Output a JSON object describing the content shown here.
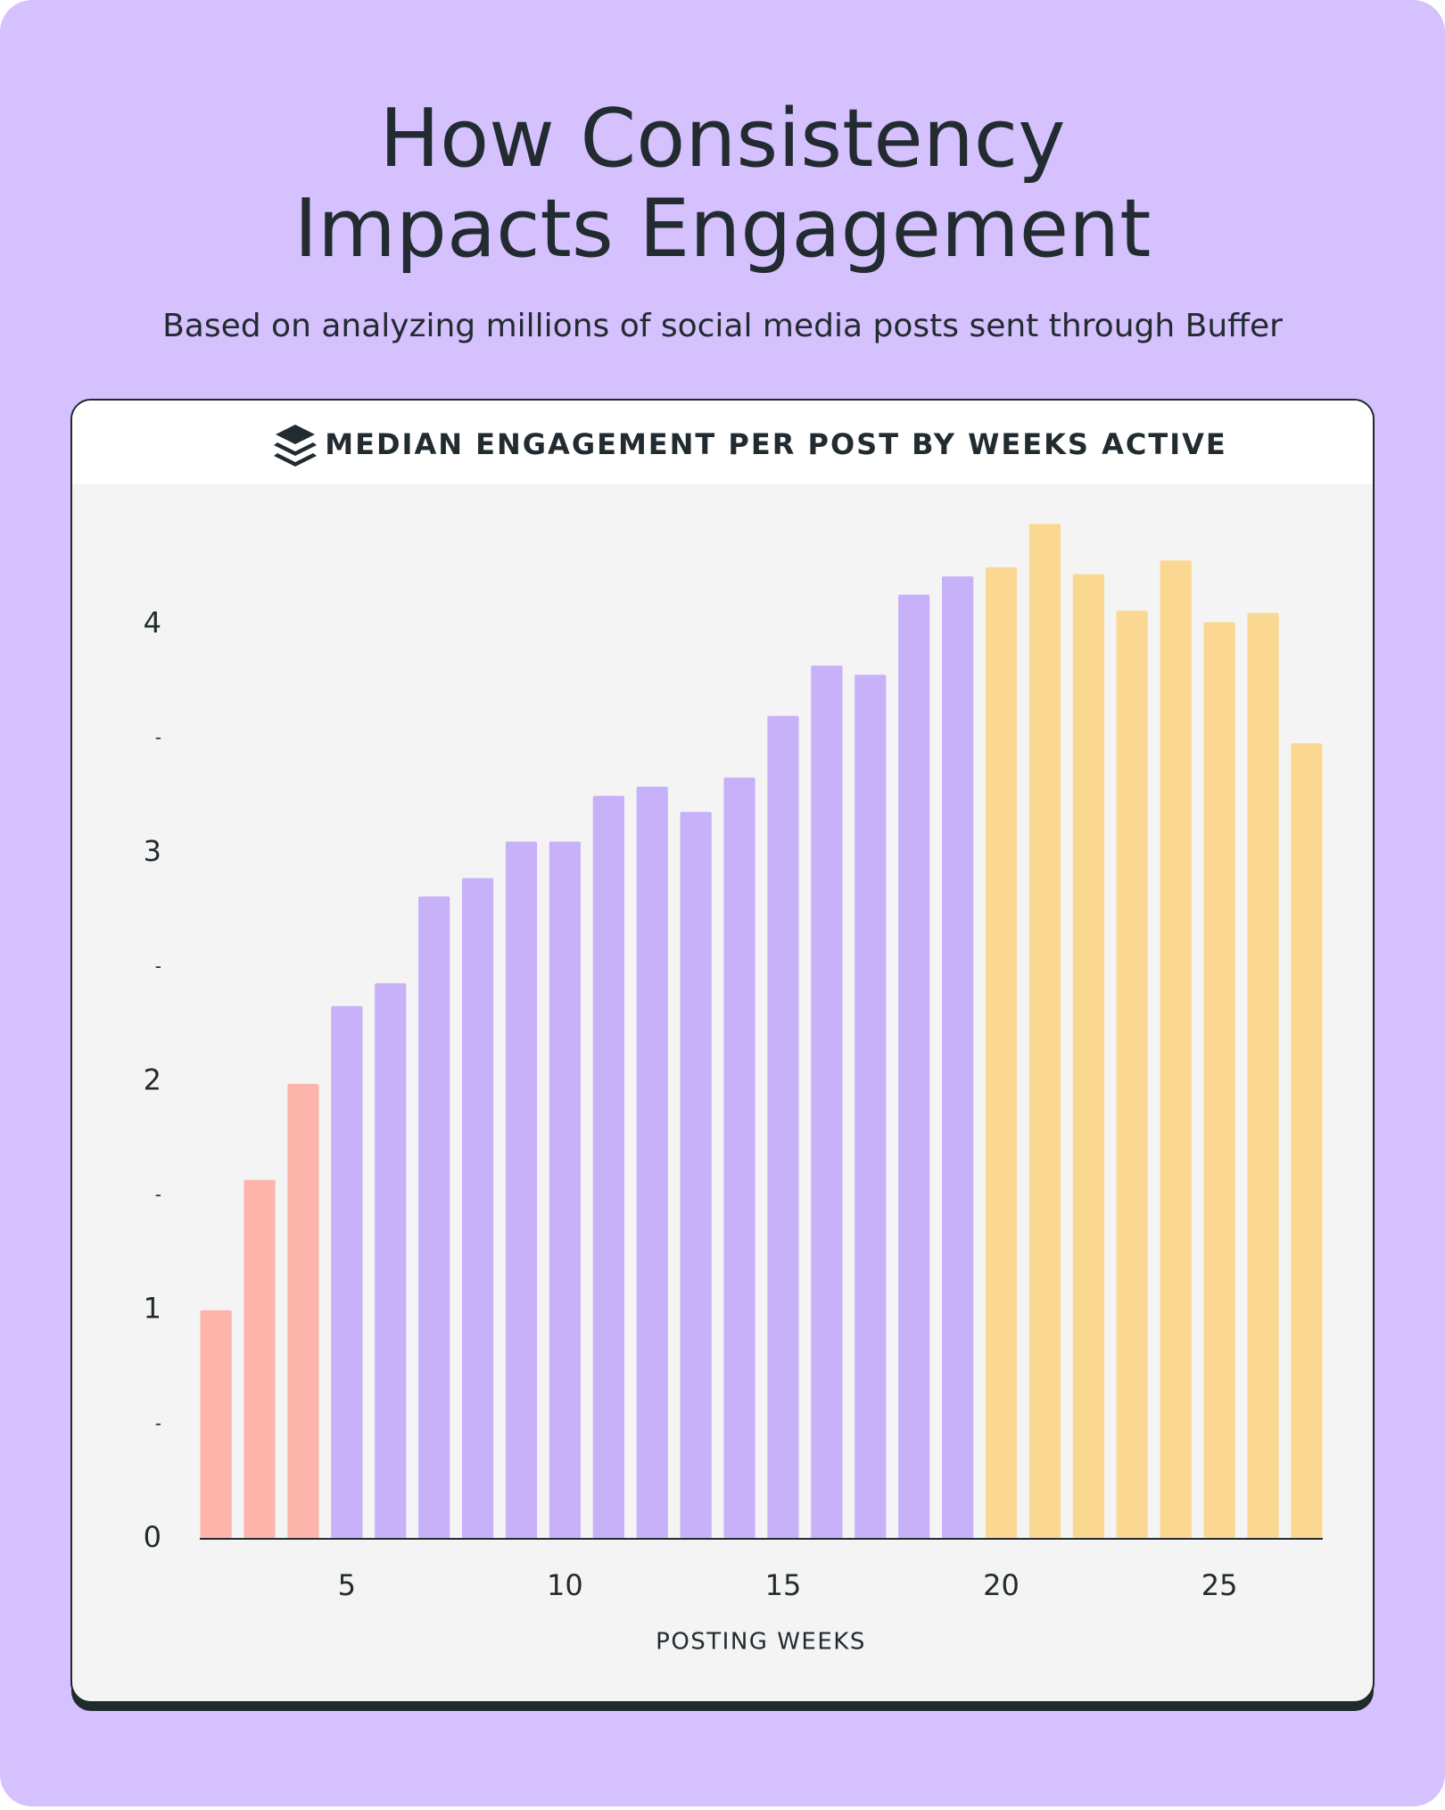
{
  "chart_data": {
    "type": "bar",
    "title": [
      "How Consistency",
      "Impacts Engagement"
    ],
    "subtitle": "Based on analyzing millions of social media posts sent through Buffer",
    "chart_title": "MEDIAN ENGAGEMENT PER POST BY WEEKS ACTIVE",
    "x_label": "POSTING WEEKS",
    "x": [
      2,
      3,
      4,
      5,
      6,
      7,
      8,
      9,
      10,
      11,
      12,
      13,
      14,
      15,
      16,
      17,
      18,
      19,
      20,
      21,
      22,
      23,
      24,
      25,
      26,
      27
    ],
    "values": [
      1.0,
      1.57,
      1.99,
      2.33,
      2.43,
      2.81,
      2.89,
      3.05,
      3.05,
      3.25,
      3.29,
      3.18,
      3.33,
      3.6,
      3.82,
      3.78,
      4.13,
      4.21,
      4.25,
      4.44,
      4.22,
      4.06,
      4.28,
      4.01,
      4.05,
      3.48
    ],
    "colors": [
      "#fdb5ab",
      "#fdb5ab",
      "#fdb5ab",
      "#c7b1f9",
      "#c7b1f9",
      "#c7b1f9",
      "#c7b1f9",
      "#c7b1f9",
      "#c7b1f9",
      "#c7b1f9",
      "#c7b1f9",
      "#c7b1f9",
      "#c7b1f9",
      "#c7b1f9",
      "#c7b1f9",
      "#c7b1f9",
      "#c7b1f9",
      "#c7b1f9",
      "#fbd891",
      "#fbd891",
      "#fbd891",
      "#fbd891",
      "#fbd891",
      "#fbd891",
      "#fbd891",
      "#fbd891"
    ],
    "xlim": [
      1.63,
      27.37
    ],
    "xticks": [
      5,
      10,
      15,
      20,
      25
    ],
    "ylim": [
      0,
      4.55
    ],
    "yticks": [
      0,
      {
        "value": 0.5,
        "label": "-"
      },
      1,
      {
        "value": 1.5,
        "label": "-"
      },
      2,
      {
        "value": 2.5,
        "label": "-"
      },
      3,
      {
        "value": 3.5,
        "label": "-"
      },
      4
    ],
    "grid": false
  }
}
